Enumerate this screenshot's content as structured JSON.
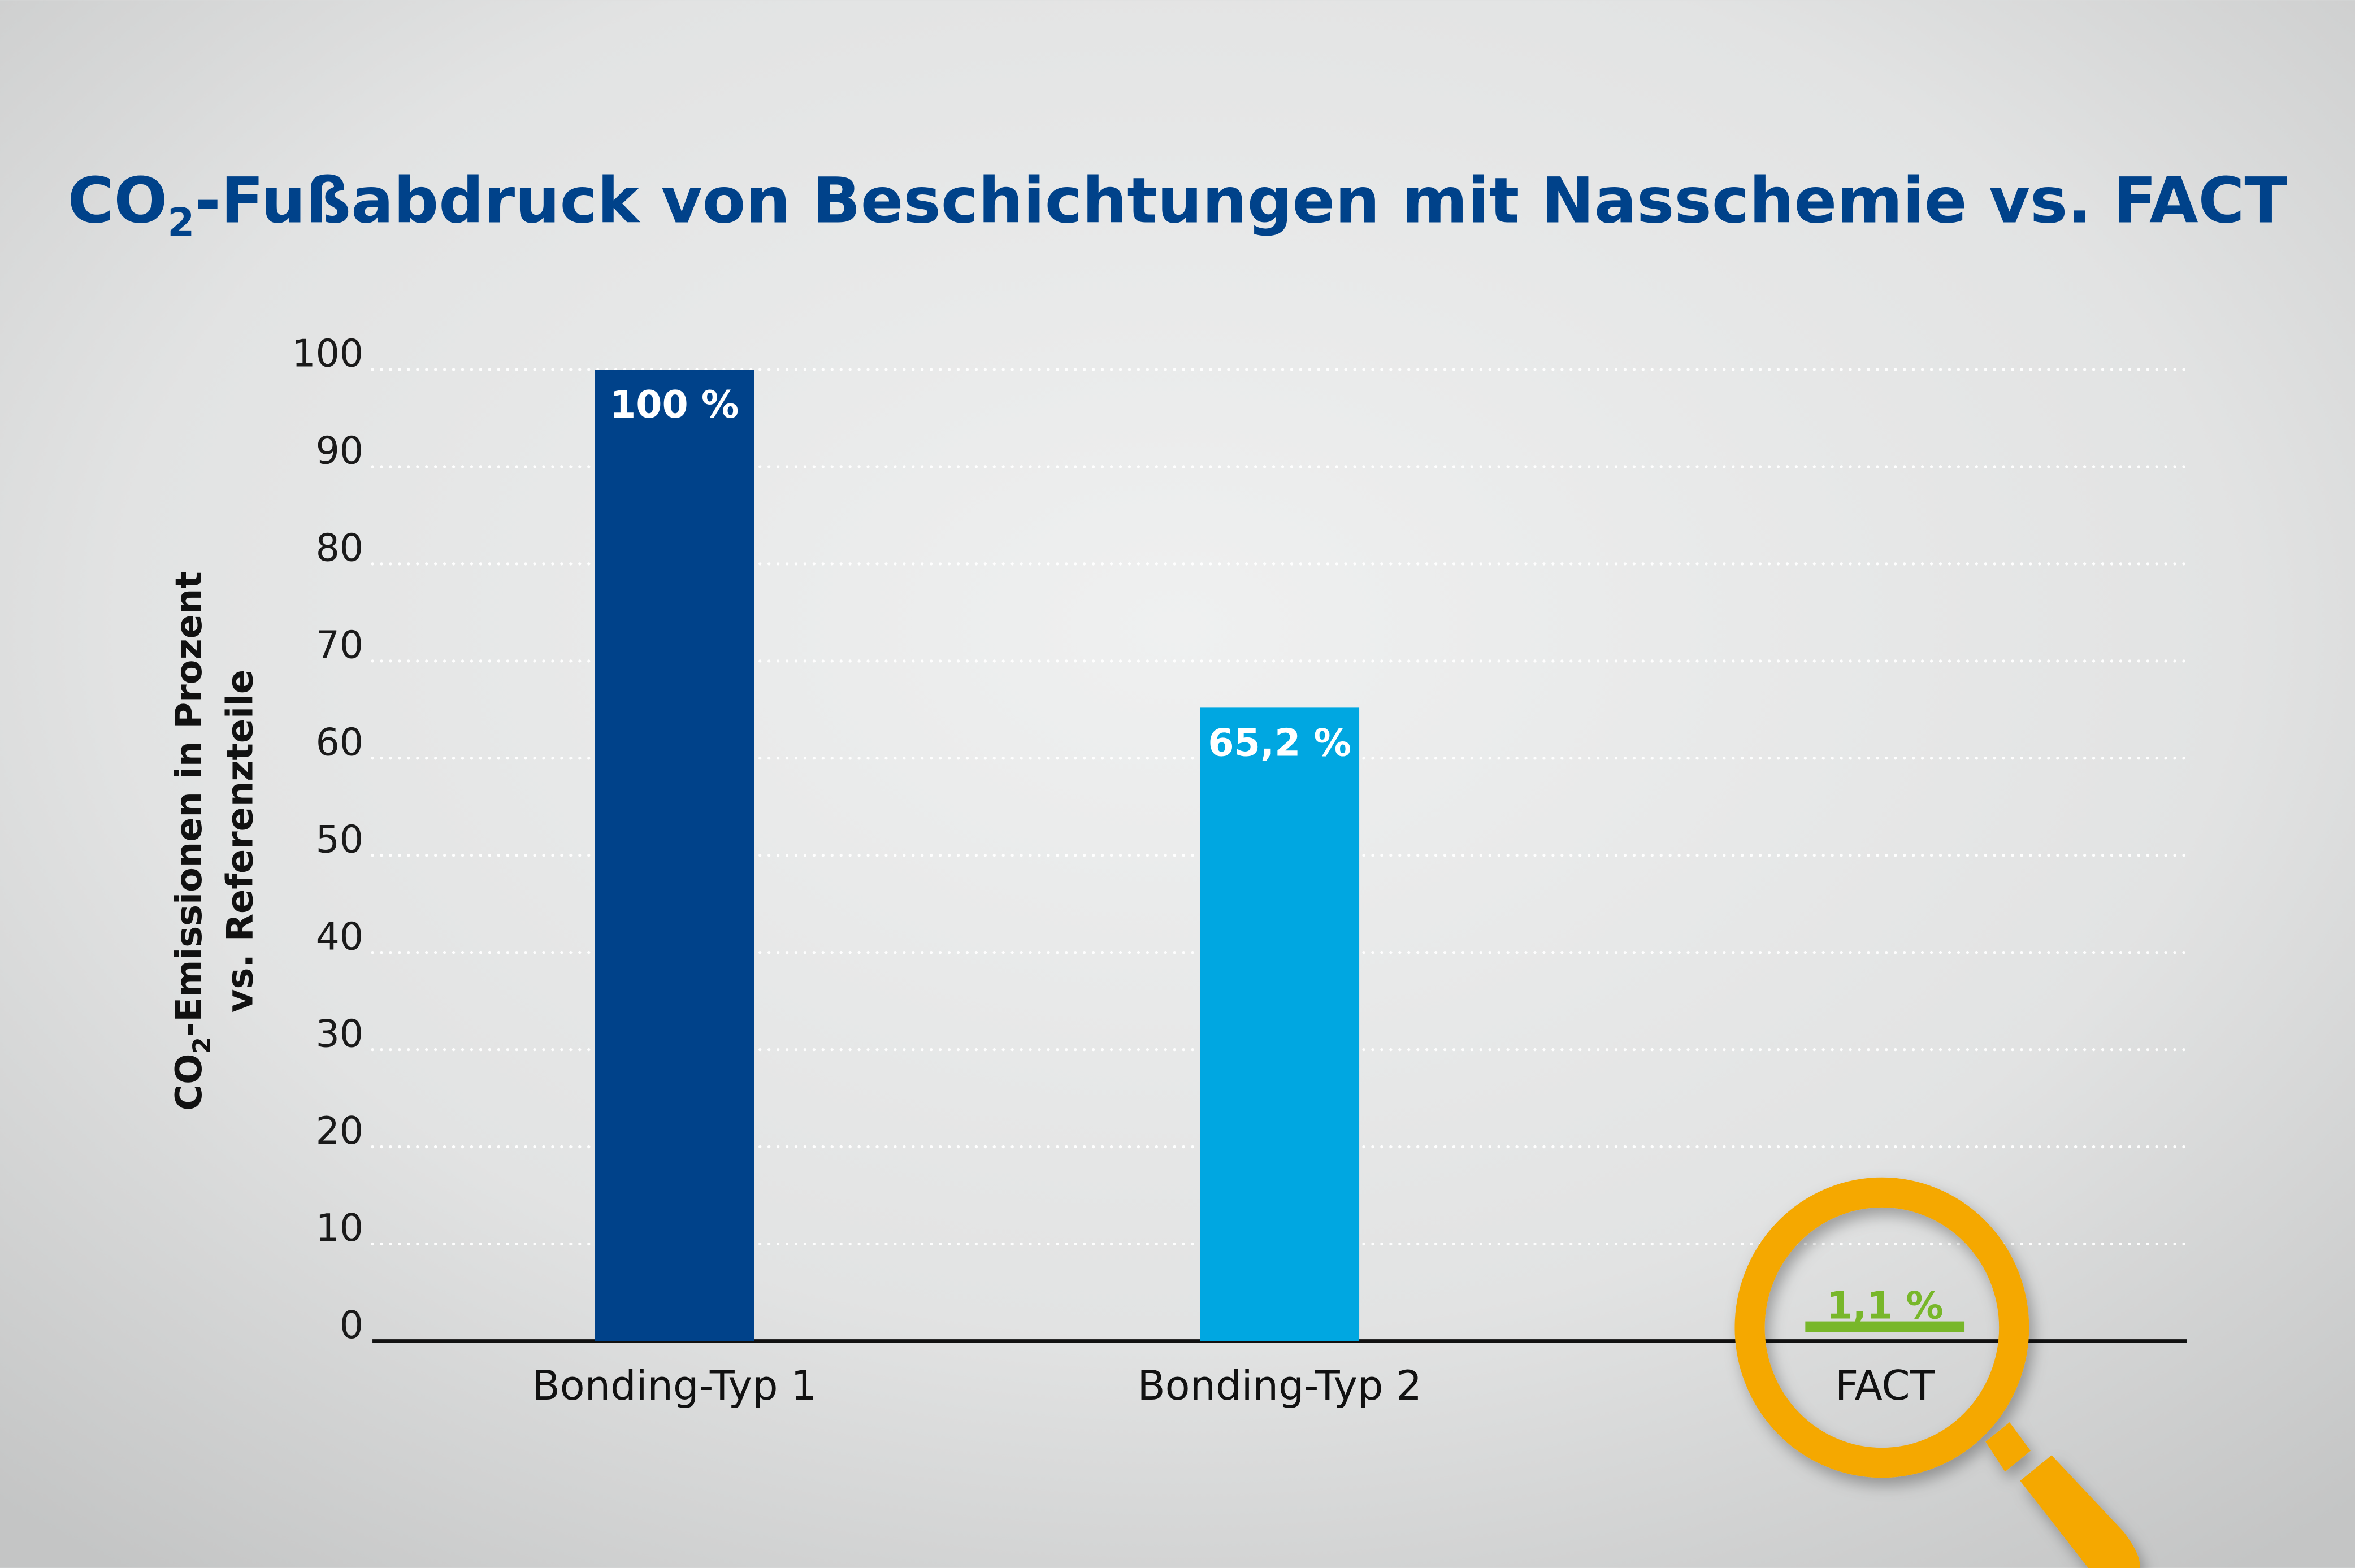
{
  "chart_data": {
    "type": "bar",
    "title": {
      "prefix": "CO",
      "sub": "2",
      "rest": "-Fußabdruck von Beschichtungen mit Nasschemie vs. FACT"
    },
    "ylabel": {
      "line1_prefix": "CO",
      "line1_sub": "2",
      "line1_rest": "-Emissionen in Prozent",
      "line2": "vs. Referenzteile"
    },
    "xlabel": "",
    "categories": [
      "Bonding-Typ 1",
      "Bonding-Typ 2",
      "FACT"
    ],
    "values": [
      100,
      65.2,
      1.1
    ],
    "data_labels": [
      "100 %",
      "65,2 %",
      "1,1 %"
    ],
    "ylim": [
      0,
      100
    ],
    "yticks": [
      0,
      10,
      20,
      30,
      40,
      50,
      60,
      70,
      80,
      90,
      100
    ],
    "grid": "dotted horizontal",
    "legend": "none",
    "highlight": {
      "category": "FACT",
      "icon": "magnifying-glass-icon"
    }
  },
  "colors": {
    "title": "#00428A",
    "bars": [
      "#00428A",
      "#00A7E1",
      "#78B72A"
    ],
    "label_fact": "#78B72A",
    "magnifier": "#F5A800",
    "axis": "#111111",
    "grid": "#ffffff"
  }
}
